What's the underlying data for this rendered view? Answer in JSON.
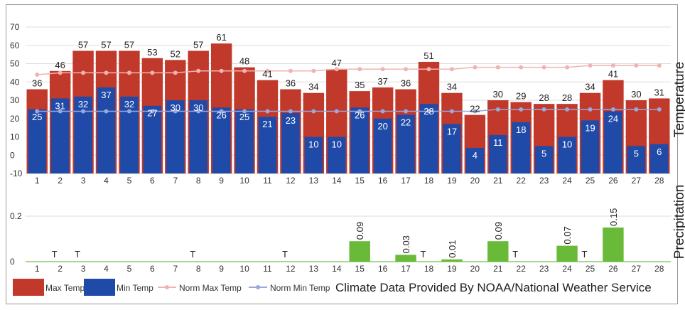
{
  "chart_data": [
    {
      "type": "bar",
      "ylabel": "Temperature",
      "ylim": [
        -10,
        70
      ],
      "yticks": [
        -10,
        0,
        10,
        20,
        30,
        40,
        50,
        60,
        70
      ],
      "grid": true,
      "categories": [
        "1",
        "2",
        "3",
        "4",
        "5",
        "6",
        "7",
        "8",
        "9",
        "10",
        "11",
        "12",
        "13",
        "14",
        "15",
        "16",
        "17",
        "18",
        "19",
        "20",
        "21",
        "22",
        "23",
        "24",
        "25",
        "26",
        "27",
        "28"
      ],
      "series": [
        {
          "name": "Max Temp",
          "color": "#c0392b",
          "values": [
            36,
            46,
            57,
            57,
            57,
            53,
            52,
            57,
            61,
            48,
            41,
            36,
            34,
            47,
            35,
            37,
            36,
            51,
            34,
            22,
            30,
            29,
            28,
            28,
            34,
            41,
            30,
            31
          ]
        },
        {
          "name": "Min Temp",
          "color": "#1f4aa8",
          "values": [
            25,
            31,
            32,
            37,
            32,
            27,
            30,
            30,
            26,
            25,
            21,
            23,
            10,
            10,
            26,
            20,
            22,
            28,
            17,
            4,
            11,
            18,
            5,
            10,
            19,
            24,
            5,
            6
          ]
        },
        {
          "name": "Norm Max Temp",
          "color": "#f2b3b0",
          "values": [
            44,
            45,
            45,
            45,
            45,
            45,
            45,
            46,
            46,
            46,
            46,
            46,
            46,
            47,
            47,
            47,
            47,
            47,
            47,
            48,
            48,
            48,
            48,
            48,
            49,
            49,
            49,
            49
          ]
        },
        {
          "name": "Norm Min Temp",
          "color": "#9aa8dc",
          "values": [
            24,
            24,
            24,
            24,
            24,
            24,
            24,
            24,
            24,
            24,
            24,
            24,
            24,
            24,
            24,
            24,
            24,
            24,
            24,
            24,
            25,
            25,
            25,
            25,
            25,
            25,
            25,
            25
          ]
        }
      ]
    },
    {
      "type": "bar",
      "ylabel": "Precipitation",
      "ylim": [
        0,
        0.3
      ],
      "yticks": [
        "0",
        "0.2"
      ],
      "categories": [
        "1",
        "2",
        "3",
        "4",
        "5",
        "6",
        "7",
        "8",
        "9",
        "10",
        "11",
        "12",
        "13",
        "14",
        "15",
        "16",
        "17",
        "18",
        "19",
        "20",
        "21",
        "22",
        "23",
        "24",
        "25",
        "26",
        "27",
        "28"
      ],
      "series": [
        {
          "name": "Precipitation",
          "color": "#6aba3a",
          "values": [
            0,
            0,
            0,
            0,
            0,
            0,
            0,
            0,
            0,
            0,
            0,
            0,
            0,
            0,
            0.09,
            0,
            0.03,
            0,
            0.01,
            0,
            0.09,
            0,
            0,
            0.07,
            0,
            0.15,
            0,
            0
          ]
        }
      ],
      "data_labels": [
        "",
        "T",
        "T",
        "",
        "",
        "",
        "",
        "T",
        "",
        "",
        "",
        "T",
        "",
        "",
        "0.09",
        "",
        "0.03",
        "T",
        "0.01",
        "",
        "0.09",
        "T",
        "",
        "0.07",
        "T",
        "0.15",
        "",
        ""
      ]
    }
  ],
  "legend": [
    {
      "label": "Max Temp",
      "kind": "box",
      "color": "#c0392b"
    },
    {
      "label": "Min Temp",
      "kind": "box",
      "color": "#1f4aa8"
    },
    {
      "label": "Norm Max Temp",
      "kind": "line",
      "color": "#f2b3b0"
    },
    {
      "label": "Norm Min Temp",
      "kind": "line",
      "color": "#9aa8dc"
    }
  ],
  "credit": "Climate Data Provided By NOAA/National Weather Service"
}
